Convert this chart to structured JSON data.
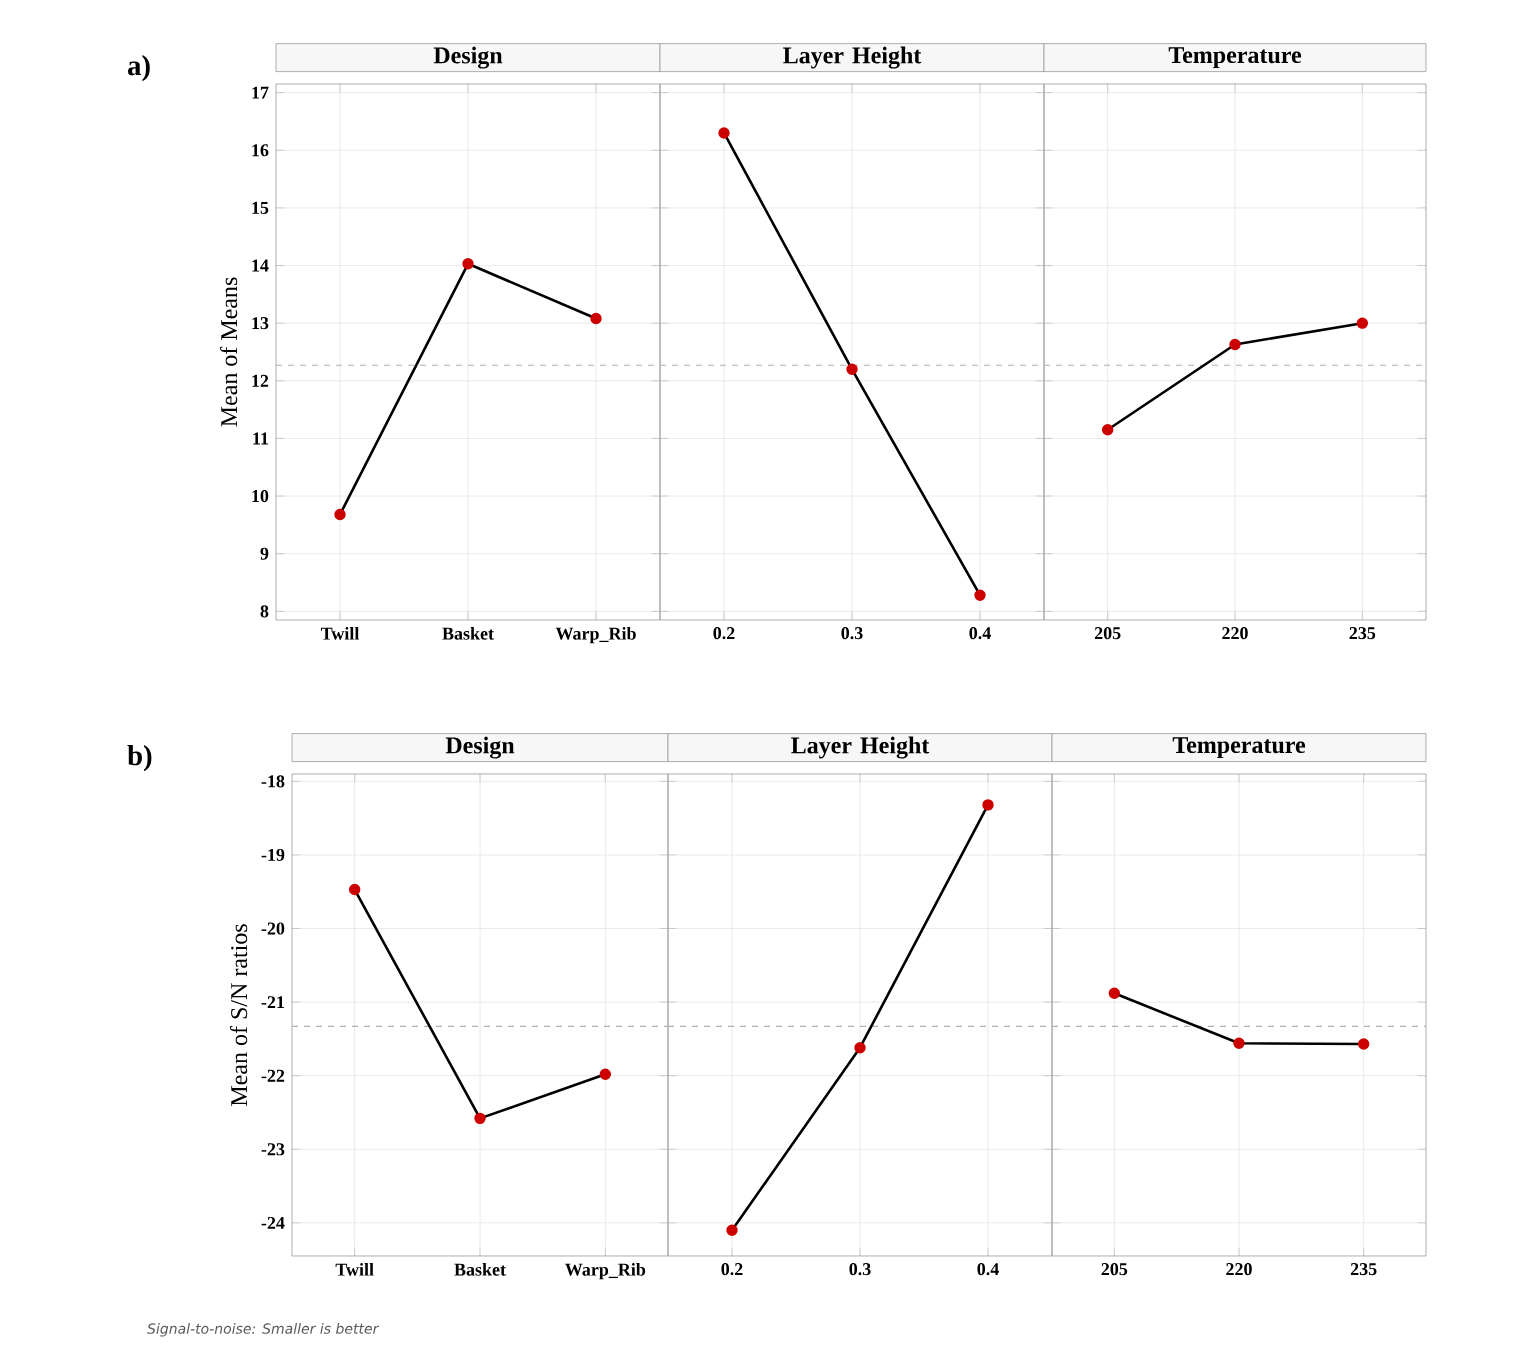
{
  "chart_data": [
    {
      "type": "line",
      "title": "Design",
      "ylabel": "Mean of Means",
      "categories": [
        "Twill",
        "Basket",
        "Warp_Rib"
      ],
      "values": [
        9.68,
        14.03,
        13.08
      ],
      "color": "#cc0000",
      "marker": "circle",
      "ylim": [
        7.85,
        17.15
      ],
      "yticks": [
        8,
        9,
        10,
        11,
        12,
        13,
        14,
        15,
        16,
        17
      ],
      "grid": true,
      "ref_lines": [
        {
          "axis": "y",
          "value": 12.27,
          "line_style": "dashed",
          "color": "#b0b0b0"
        }
      ],
      "annotations": [
        "a)"
      ]
    },
    {
      "type": "line",
      "title": "Layer Height",
      "categories": [
        "0.2",
        "0.3",
        "0.4"
      ],
      "values": [
        16.3,
        12.2,
        8.28
      ],
      "color": "#cc0000",
      "marker": "circle",
      "ylim": [
        7.85,
        17.15
      ],
      "yticks": [
        8,
        9,
        10,
        11,
        12,
        13,
        14,
        15,
        16,
        17
      ],
      "grid": true,
      "tick_labels": "x",
      "ref_lines": [
        {
          "axis": "y",
          "value": 12.27,
          "line_style": "dashed",
          "color": "#b0b0b0"
        }
      ]
    },
    {
      "type": "line",
      "title": "Temperature",
      "categories": [
        "205",
        "220",
        "235"
      ],
      "values": [
        11.15,
        12.63,
        13.0
      ],
      "color": "#cc0000",
      "marker": "circle",
      "ylim": [
        7.85,
        17.15
      ],
      "yticks": [
        8,
        9,
        10,
        11,
        12,
        13,
        14,
        15,
        16,
        17
      ],
      "grid": true,
      "tick_labels": "x",
      "ref_lines": [
        {
          "axis": "y",
          "value": 12.27,
          "line_style": "dashed",
          "color": "#b0b0b0"
        }
      ]
    },
    {
      "type": "line",
      "title": "Design",
      "ylabel": "Mean of S/N ratios",
      "categories": [
        "Twill",
        "Basket",
        "Warp_Rib"
      ],
      "values": [
        -19.47,
        -22.58,
        -21.98
      ],
      "color": "#cc0000",
      "marker": "circle",
      "ylim": [
        -24.45,
        -17.9
      ],
      "yticks": [
        -24,
        -23,
        -22,
        -21,
        -20,
        -19,
        -18
      ],
      "grid": true,
      "ref_lines": [
        {
          "axis": "y",
          "value": -21.33,
          "line_style": "dashed",
          "color": "#b0b0b0"
        }
      ],
      "annotations": [
        "b)",
        "Signal-to-noise: Smaller is better"
      ]
    },
    {
      "type": "line",
      "title": "Layer Height",
      "categories": [
        "0.2",
        "0.3",
        "0.4"
      ],
      "values": [
        -24.1,
        -21.62,
        -18.32
      ],
      "color": "#cc0000",
      "marker": "circle",
      "ylim": [
        -24.45,
        -17.9
      ],
      "yticks": [
        -24,
        -23,
        -22,
        -21,
        -20,
        -19,
        -18
      ],
      "grid": true,
      "tick_labels": "x",
      "ref_lines": [
        {
          "axis": "y",
          "value": -21.33,
          "line_style": "dashed",
          "color": "#b0b0b0"
        }
      ]
    },
    {
      "type": "line",
      "title": "Temperature",
      "categories": [
        "205",
        "220",
        "235"
      ],
      "values": [
        -20.88,
        -21.56,
        -21.57
      ],
      "color": "#cc0000",
      "marker": "circle",
      "ylim": [
        -24.45,
        -17.9
      ],
      "yticks": [
        -24,
        -23,
        -22,
        -21,
        -20,
        -19,
        -18
      ],
      "grid": true,
      "tick_labels": "x",
      "ref_lines": [
        {
          "axis": "y",
          "value": -21.33,
          "line_style": "dashed",
          "color": "#b0b0b0"
        }
      ]
    }
  ]
}
